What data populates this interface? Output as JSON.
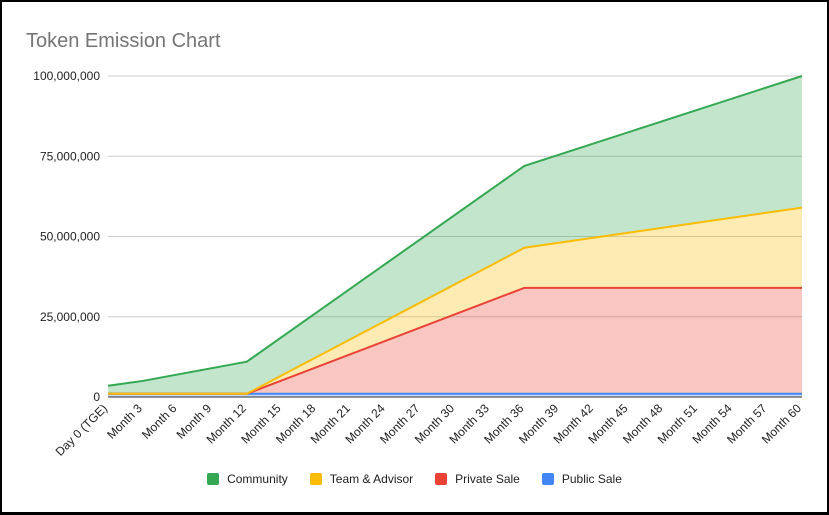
{
  "chart_data": {
    "type": "area",
    "stacked": true,
    "title": "Token Emission Chart",
    "xlabel": "",
    "ylabel": "",
    "ylim": [
      0,
      100000000
    ],
    "y_ticks": [
      0,
      25000000,
      50000000,
      75000000,
      100000000
    ],
    "y_tick_labels": [
      "0",
      "25,000,000",
      "50,000,000",
      "75,000,000",
      "100,000,000"
    ],
    "grid": true,
    "legend_position": "bottom",
    "x_positions": [
      0,
      3,
      6,
      9,
      12,
      15,
      18,
      21,
      24,
      27,
      30,
      33,
      36,
      39,
      42,
      45,
      48,
      51,
      54,
      57,
      60
    ],
    "categories": [
      "Day 0 (TGE)",
      "Month 3",
      "Month 6",
      "Month 9",
      "Month 12",
      "Month 15",
      "Month 18",
      "Month 21",
      "Month 24",
      "Month 27",
      "Month 30",
      "Month 33",
      "Month 36",
      "Month 39",
      "Month 42",
      "Month 45",
      "Month 48",
      "Month 51",
      "Month 54",
      "Month 57",
      "Month 60"
    ],
    "data_points": {
      "x": [
        0,
        3,
        12,
        36,
        60
      ],
      "series": [
        {
          "name": "Public Sale",
          "color": "#4285f4",
          "values": [
            1000000,
            1000000,
            1000000,
            1000000,
            1000000
          ]
        },
        {
          "name": "Private Sale",
          "color": "#ea4335",
          "values": [
            1000000,
            1000000,
            1000000,
            34000000,
            34000000
          ]
        },
        {
          "name": "Team & Advisor",
          "color": "#fbbc04",
          "values": [
            1000000,
            1000000,
            1000000,
            46500000,
            59000000
          ]
        },
        {
          "name": "Community",
          "color": "#34a853",
          "values": [
            3500000,
            5000000,
            11000000,
            72000000,
            100000000
          ]
        }
      ]
    },
    "legend": [
      "Community",
      "Team & Advisor",
      "Private Sale",
      "Public Sale"
    ],
    "legend_colors": [
      "#34a853",
      "#fbbc04",
      "#ea4335",
      "#4285f4"
    ]
  }
}
